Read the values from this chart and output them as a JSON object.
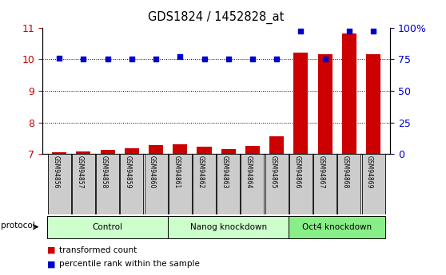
{
  "title": "GDS1824 / 1452828_at",
  "samples": [
    "GSM94856",
    "GSM94857",
    "GSM94858",
    "GSM94859",
    "GSM94860",
    "GSM94861",
    "GSM94862",
    "GSM94863",
    "GSM94864",
    "GSM94865",
    "GSM94866",
    "GSM94867",
    "GSM94868",
    "GSM94869"
  ],
  "groups": [
    {
      "label": "Control",
      "start": 0,
      "end": 5
    },
    {
      "label": "Nanog knockdown",
      "start": 5,
      "end": 10
    },
    {
      "label": "Oct4 knockdown",
      "start": 10,
      "end": 14
    }
  ],
  "transformed_count": [
    7.05,
    7.08,
    7.12,
    7.18,
    7.28,
    7.32,
    7.22,
    7.15,
    7.25,
    7.55,
    10.2,
    10.15,
    10.8,
    10.15
  ],
  "percentile_rank": [
    76,
    75,
    75,
    75,
    75,
    77,
    75,
    75,
    75,
    75,
    97,
    75,
    97,
    97
  ],
  "ylim_left": [
    7,
    11
  ],
  "ylim_right": [
    0,
    100
  ],
  "yticks_left": [
    7,
    8,
    9,
    10,
    11
  ],
  "yticks_right": [
    0,
    25,
    50,
    75,
    100
  ],
  "bar_color": "#cc0000",
  "dot_color": "#0000cc",
  "left_axis_color": "#cc0000",
  "right_axis_color": "#0000cc",
  "grid_color": "#000000",
  "bg_plot": "#ffffff",
  "bg_control": "#ccffcc",
  "bg_nanog": "#ccffcc",
  "bg_oct4": "#88ee88",
  "label_bg": "#cccccc",
  "legend_items": [
    "transformed count",
    "percentile rank within the sample"
  ]
}
